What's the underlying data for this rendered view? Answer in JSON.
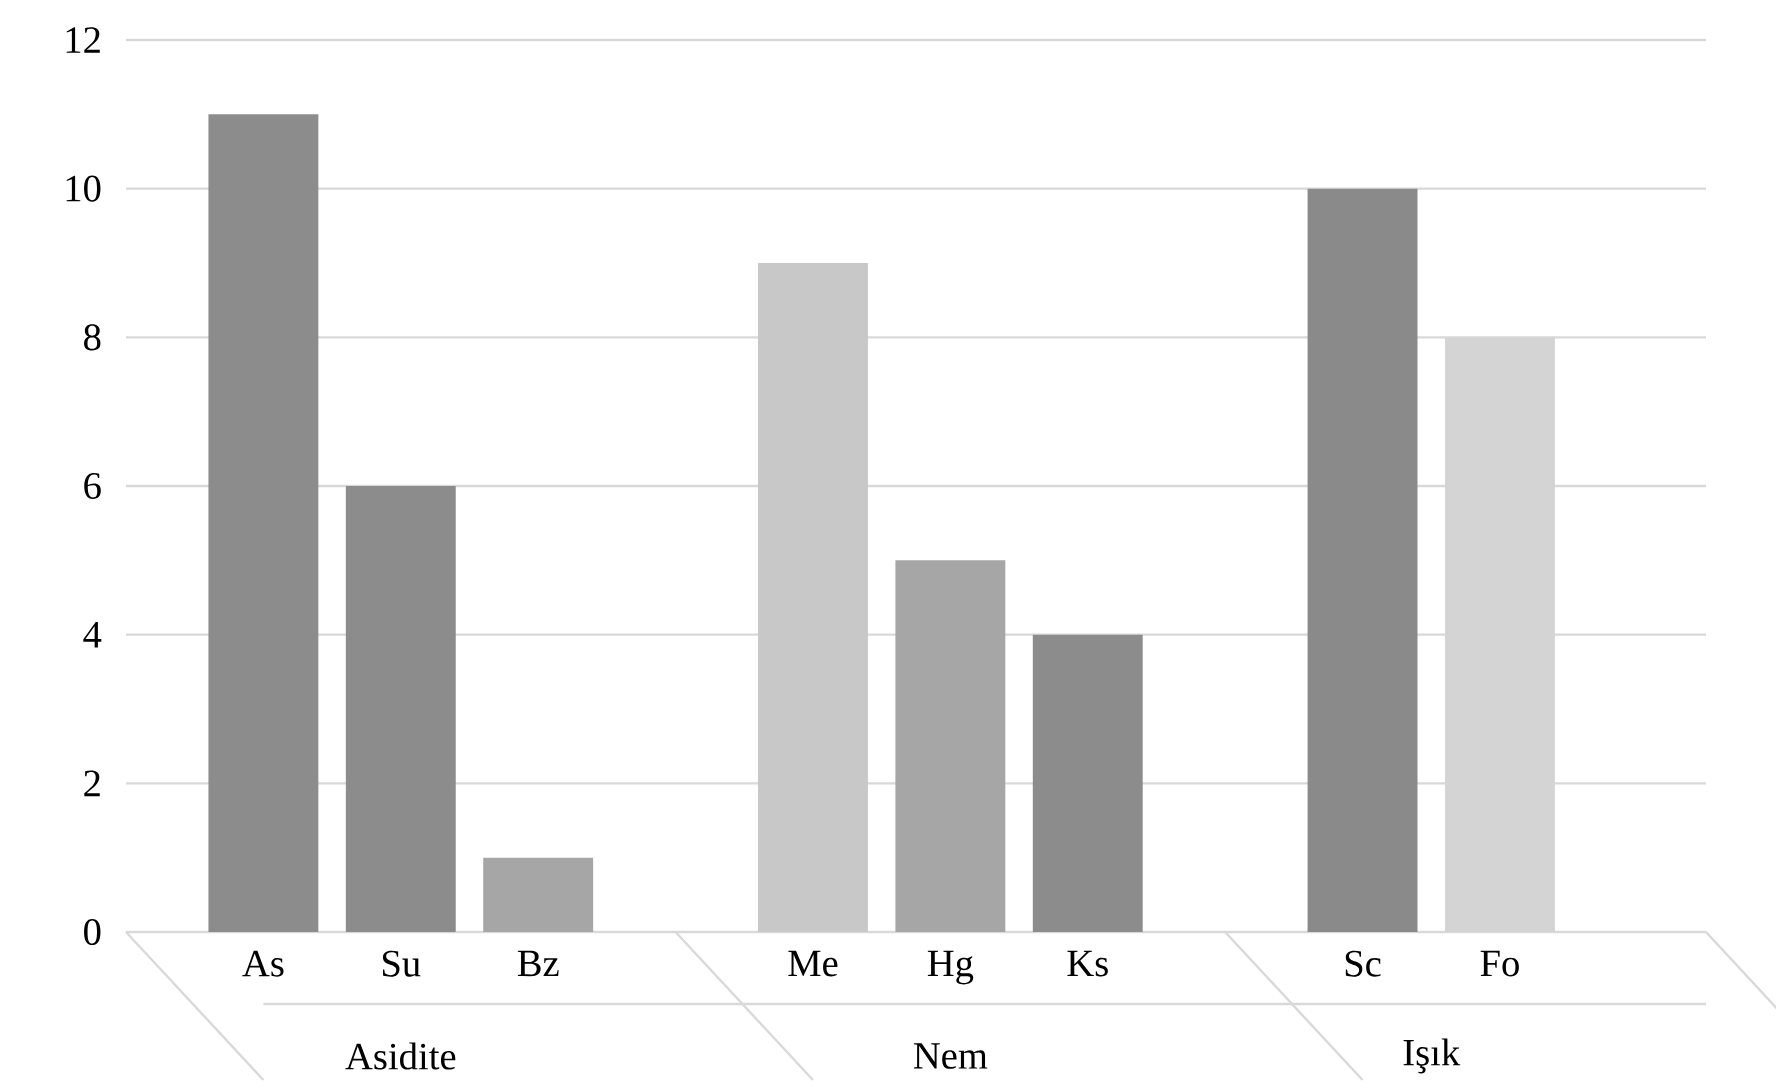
{
  "chart_data": {
    "type": "bar",
    "categories": [
      "As",
      "Su",
      "Bz",
      null,
      "Me",
      "Hg",
      "Ks",
      null,
      "Sc",
      "Fo"
    ],
    "values": [
      11,
      6,
      1,
      null,
      9,
      5,
      4,
      null,
      10,
      8
    ],
    "colors": [
      "#8c8c8c",
      "#8c8c8c",
      "#a6a6a6",
      null,
      "#c8c8c8",
      "#a6a6a6",
      "#8c8c8c",
      null,
      "#8a8a8a",
      "#d4d4d4"
    ],
    "annotations": [
      "Asidite",
      "Nem",
      "Işık"
    ],
    "ylim": [
      0,
      12
    ],
    "yticks": [
      0,
      2,
      4,
      6,
      8,
      10,
      12
    ],
    "grid": "y"
  }
}
